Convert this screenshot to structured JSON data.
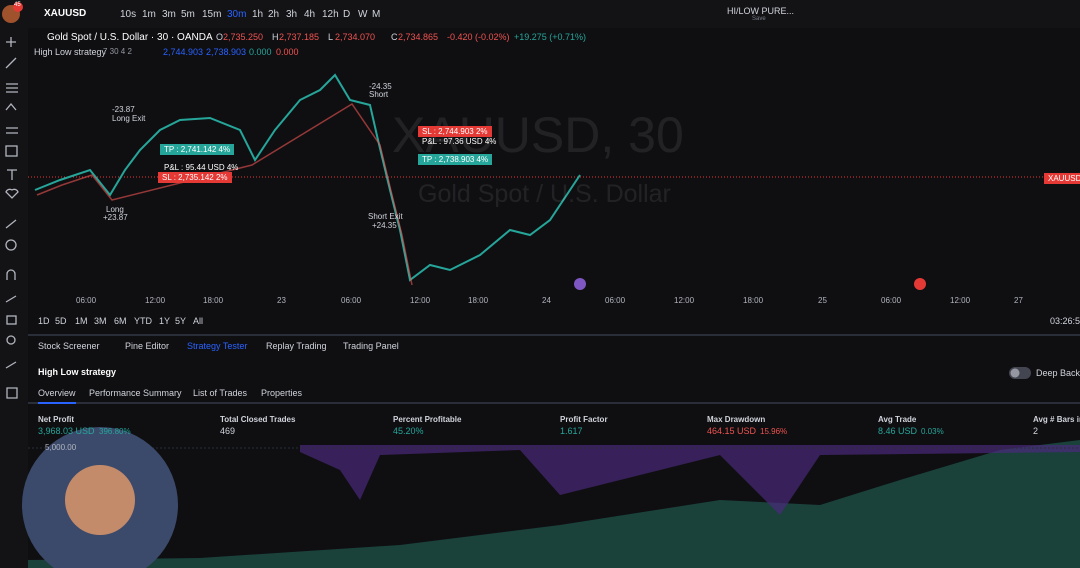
{
  "toolbar": {
    "avatar_badge": "45",
    "symbol": "XAUUSD",
    "intervals": [
      "10s",
      "1m",
      "3m",
      "5m",
      "15m",
      "30m",
      "1h",
      "2h",
      "3h",
      "4h",
      "12h",
      "D",
      "W",
      "M"
    ],
    "active_interval_index": 5,
    "layout_name": "HI/LOW PURE...",
    "save": "Save"
  },
  "legend": {
    "title": "Gold Spot / U.S. Dollar · 30 · OANDA",
    "ohlc": [
      {
        "label": "O",
        "value": "2,735.250"
      },
      {
        "label": "H",
        "value": "2,737.185"
      },
      {
        "label": "L",
        "value": "2,734.070"
      },
      {
        "label": "C",
        "value": "2,734.865"
      }
    ],
    "change": "-0.420 (-0.02%)",
    "change_period": "+19.275 (+0.71%)"
  },
  "indicator": {
    "name": "High Low strategy",
    "params": "7 30 4 2",
    "values": [
      "2,744.903",
      "2,738.903",
      "0.000",
      "0.000"
    ]
  },
  "watermark": {
    "symbol": "XAUUSD, 30",
    "description": "Gold Spot / U.S. Dollar"
  },
  "trade_markers": [
    {
      "price": "-23.87",
      "label": "Long Exit"
    },
    {
      "label": "Long",
      "price": "+23.87"
    },
    {
      "price": "-24.35",
      "label": "Short"
    },
    {
      "label": "Short Exit",
      "price": "+24.35"
    }
  ],
  "order_boxes": [
    "TP : 2,741.142 4%",
    "P&L : 95.44 USD 4%",
    "SL : 2,735.142 2%",
    "SL : 2,744.903 2%",
    "P&L : 97.36 USD 4%",
    "TP : 2,738.903 4%"
  ],
  "price_tag": "XAUUSD",
  "time_axis": [
    "06:00",
    "12:00",
    "18:00",
    "23",
    "06:00",
    "12:00",
    "18:00",
    "24",
    "06:00",
    "12:00",
    "18:00",
    "25",
    "06:00",
    "12:00",
    "27"
  ],
  "range_buttons": [
    "1D",
    "5D",
    "1M",
    "3M",
    "6M",
    "YTD",
    "1Y",
    "5Y",
    "All"
  ],
  "clock": "03:26:5",
  "bottom_tabs": [
    "Stock Screener",
    "Pine Editor",
    "Strategy Tester",
    "Replay Trading",
    "Trading Panel"
  ],
  "active_tab_index": 2,
  "strategy": {
    "name": "High Low strategy",
    "deep_backtesting": "Deep Backt"
  },
  "sub_tabs": [
    "Overview",
    "Performance Summary",
    "List of Trades",
    "Properties"
  ],
  "active_sub_tab_index": 0,
  "metrics": [
    {
      "label": "Net Profit",
      "value": "3,968.03 USD",
      "percent": "396.80%"
    },
    {
      "label": "Total Closed Trades",
      "value": "469"
    },
    {
      "label": "Percent Profitable",
      "value": "45.20%"
    },
    {
      "label": "Profit Factor",
      "value": "1.617"
    },
    {
      "label": "Max Drawdown",
      "value": "464.15 USD",
      "percent": "15.96%"
    },
    {
      "label": "Avg Trade",
      "value": "8.46 USD",
      "percent": "0.03%"
    },
    {
      "label": "Avg # Bars in",
      "value": "2"
    }
  ],
  "equity_axis_label": "5,000.00"
}
